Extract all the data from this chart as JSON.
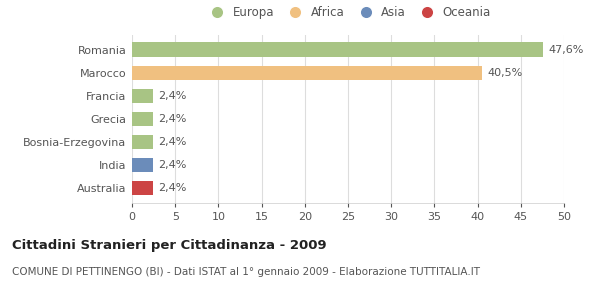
{
  "categories": [
    "Romania",
    "Marocco",
    "Francia",
    "Grecia",
    "Bosnia-Erzegovina",
    "India",
    "Australia"
  ],
  "values": [
    47.6,
    40.5,
    2.4,
    2.4,
    2.4,
    2.4,
    2.4
  ],
  "labels": [
    "47,6%",
    "40,5%",
    "2,4%",
    "2,4%",
    "2,4%",
    "2,4%",
    "2,4%"
  ],
  "colors": [
    "#a8c484",
    "#f0c080",
    "#a8c484",
    "#a8c484",
    "#a8c484",
    "#6b8cba",
    "#cc4444"
  ],
  "continent_labels": [
    "Europa",
    "Africa",
    "Asia",
    "Oceania"
  ],
  "continent_colors": [
    "#a8c484",
    "#f0c080",
    "#6b8cba",
    "#cc4444"
  ],
  "xlim": [
    0,
    50
  ],
  "xticks": [
    0,
    5,
    10,
    15,
    20,
    25,
    30,
    35,
    40,
    45,
    50
  ],
  "title_bold": "Cittadini Stranieri per Cittadinanza - 2009",
  "subtitle": "COMUNE DI PETTINENGO (BI) - Dati ISTAT al 1° gennaio 2009 - Elaborazione TUTTITALIA.IT",
  "background_color": "#ffffff",
  "bar_height": 0.62,
  "label_fontsize": 8.0,
  "tick_fontsize": 8.0,
  "legend_fontsize": 8.5,
  "title_fontsize": 9.5,
  "subtitle_fontsize": 7.5
}
